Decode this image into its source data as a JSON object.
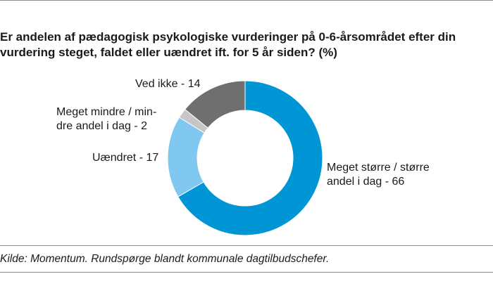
{
  "chart_data": {
    "type": "pie",
    "donut": true,
    "title_lines": [
      "Er andelen af pædagogisk psykologiske vurderinger på 0-6-årsområdet efter din",
      "vurdering steget, faldet eller uændret ift. for 5 år siden? (%)"
    ],
    "slices": [
      {
        "name": "Meget større / større andel i dag",
        "value": 66,
        "color": "#0096d6",
        "label_lines": [
          "Meget større / større",
          "andel i dag - 66"
        ]
      },
      {
        "name": "Uændret",
        "value": 17,
        "color": "#80c8ef",
        "label_lines": [
          "Uændret - 17"
        ]
      },
      {
        "name": "Meget mindre / mindre andel i dag",
        "value": 2,
        "color": "#c6c6c6",
        "label_lines": [
          "Meget mindre / min-",
          "dre andel i dag - 2"
        ]
      },
      {
        "name": "Ved ikke",
        "value": 14,
        "color": "#6f6f6f",
        "label_lines": [
          "Ved ikke - 14"
        ]
      }
    ],
    "source": "Kilde: Momentum. Rundspørge blandt kommunale dagtilbudschefer."
  }
}
